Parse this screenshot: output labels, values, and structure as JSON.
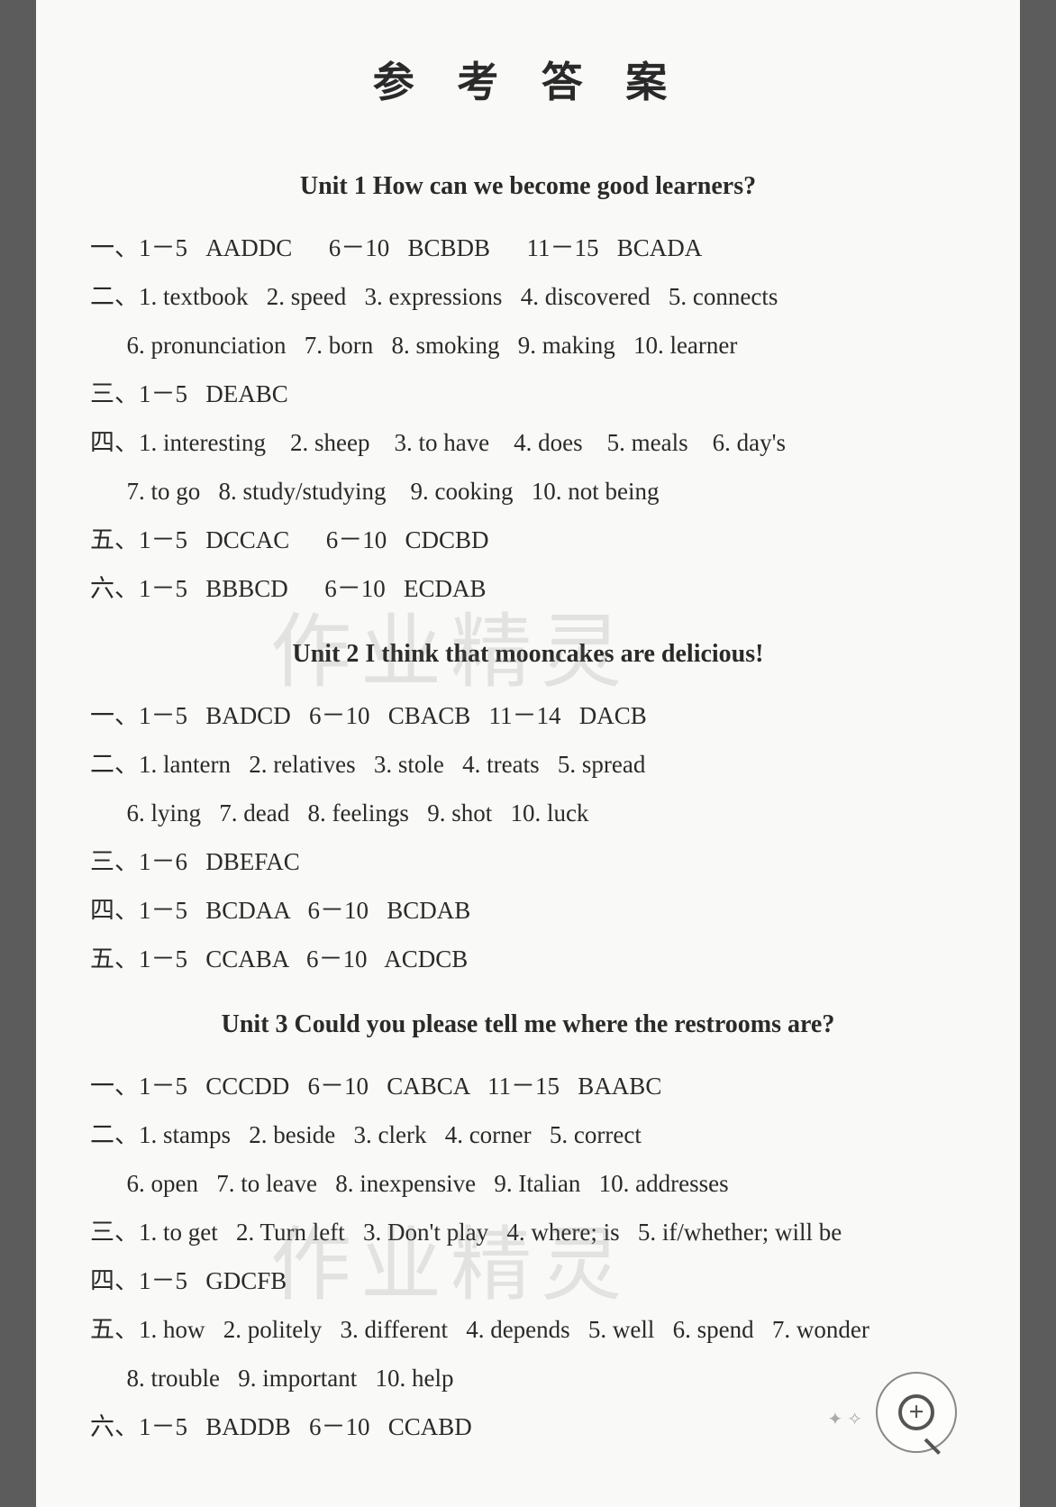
{
  "title": "参 考 答 案",
  "watermark": "作业精灵",
  "units": [
    {
      "heading": "Unit 1   How can we become good learners?",
      "lines": [
        "一、1－5   AADDC      6－10   BCBDB      11－15   BCADA",
        "二、1. textbook   2. speed   3. expressions   4. discovered   5. connects",
        "      6. pronunciation   7. born   8. smoking   9. making   10. learner",
        "三、1－5   DEABC",
        "四、1. interesting    2. sheep    3. to have    4. does    5. meals    6. day's",
        "      7. to go   8. study/studying    9. cooking   10. not being",
        "五、1－5   DCCAC      6－10   CDCBD",
        "六、1－5   BBBCD      6－10   ECDAB"
      ]
    },
    {
      "heading": "Unit 2   I think that mooncakes are delicious!",
      "lines": [
        "一、1－5   BADCD   6－10   CBACB   11－14   DACB",
        "二、1. lantern   2. relatives   3. stole   4. treats   5. spread",
        "      6. lying   7. dead   8. feelings   9. shot   10. luck",
        "三、1－6   DBEFAC",
        "四、1－5   BCDAA   6－10   BCDAB",
        "五、1－5   CCABA   6－10   ACDCB"
      ]
    },
    {
      "heading": "Unit 3   Could you please tell me where the restrooms are?",
      "lines": [
        "一、1－5   CCCDD   6－10   CABCA   11－15   BAABC",
        "二、1. stamps   2. beside   3. clerk   4. corner   5. correct",
        "      6. open   7. to leave   8. inexpensive   9. Italian   10. addresses",
        "三、1. to get   2. Turn left   3. Don't play   4. where; is   5. if/whether; will be",
        "四、1－5   GDCFB",
        "五、1. how   2. politely   3. different   4. depends   5. well   6. spend   7. wonder",
        "      8. trouble   9. important   10. help",
        "六、1－5   BADDB   6－10   CCABD"
      ]
    }
  ]
}
